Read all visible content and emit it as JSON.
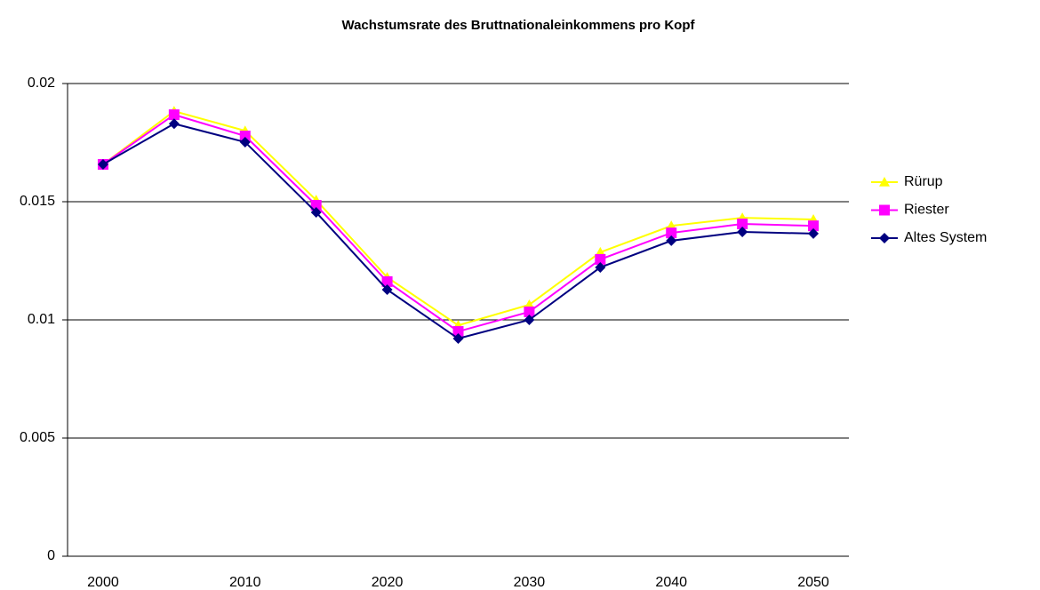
{
  "chart_data": {
    "type": "line",
    "title": "Wachstumsrate des Bruttnationaleinkommens pro Kopf",
    "categories": [
      "2000",
      null,
      "2010",
      null,
      "2020",
      null,
      "2030",
      null,
      "2040",
      null,
      "2050"
    ],
    "series": [
      {
        "name": "Rürup",
        "color": "#ffff00",
        "marker": "triangle",
        "values": [
          0.01658,
          0.01883,
          0.018,
          0.01507,
          0.0118,
          0.00977,
          0.01064,
          0.01286,
          0.01398,
          0.01432,
          0.01425
        ]
      },
      {
        "name": "Riester",
        "color": "#ff00ff",
        "marker": "square",
        "values": [
          0.01658,
          0.01868,
          0.01778,
          0.01485,
          0.01162,
          0.00951,
          0.01034,
          0.01256,
          0.01368,
          0.01406,
          0.01398
        ]
      },
      {
        "name": "Altes System",
        "color": "#000080",
        "marker": "diamond",
        "values": [
          0.01658,
          0.0183,
          0.01752,
          0.01455,
          0.01128,
          0.00921,
          0.01,
          0.01222,
          0.01335,
          0.01372,
          0.01365
        ]
      }
    ],
    "ylim": [
      0,
      0.02
    ],
    "yticks": [
      0,
      0.005,
      0.01,
      0.015,
      0.02
    ],
    "grid": true,
    "legend": "right"
  }
}
